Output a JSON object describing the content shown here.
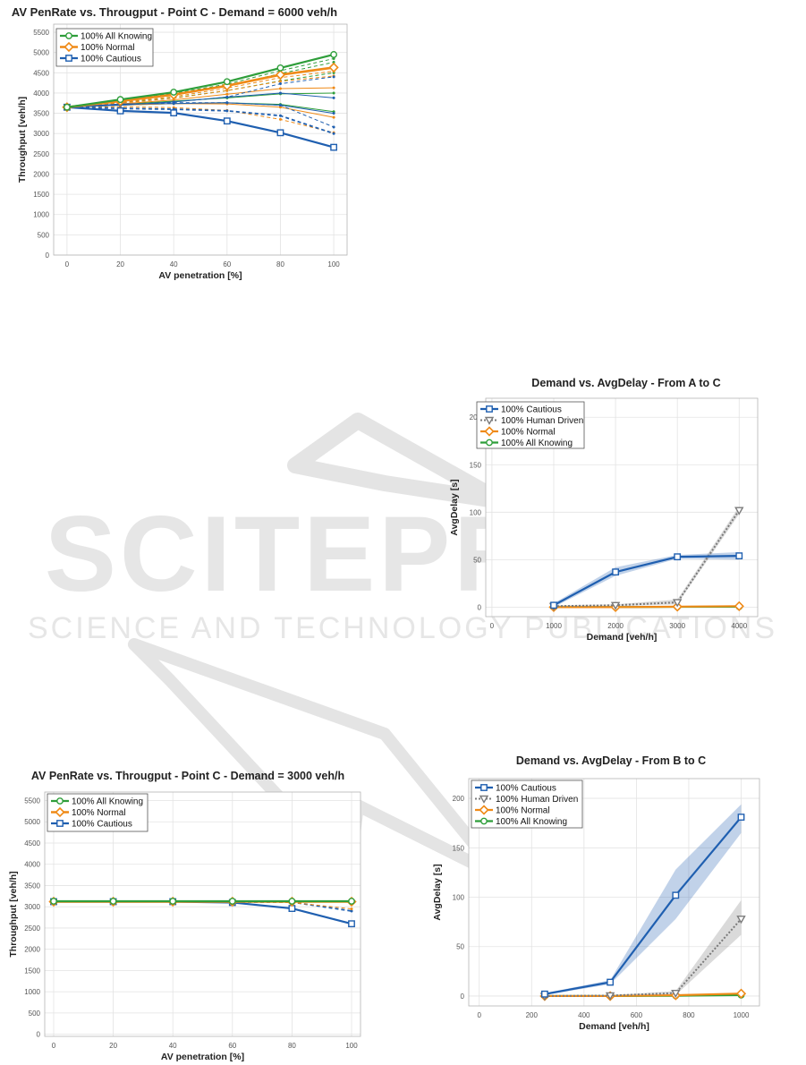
{
  "colors": {
    "green": "#2e9e3a",
    "orange": "#ef8a17",
    "blue": "#1f5fb0",
    "gray": "#7a7a7a",
    "grid": "#e3e3e3",
    "axis": "#555555",
    "watermark": "#dcdcdc"
  },
  "watermark": {
    "title": "SCITEPRESS",
    "subtitle": "SCIENCE AND TECHNOLOGY PUBLICATIONS"
  },
  "chart_data": [
    {
      "id": "c1",
      "type": "line",
      "title": "AV PenRate vs. Througput - Point C - Demand = 6000 veh/h",
      "xlabel": "AV penetration [%]",
      "ylabel": "Throughput [veh/h]",
      "xlim": [
        -5,
        105
      ],
      "ylim": [
        0,
        5700
      ],
      "xticks": [
        0,
        20,
        40,
        60,
        80,
        100
      ],
      "yticks": [
        0,
        500,
        1000,
        1500,
        2000,
        2500,
        3000,
        3500,
        4000,
        4500,
        5000,
        5500
      ],
      "grid": true,
      "legend_position": "top-left",
      "x": [
        0,
        20,
        40,
        60,
        80,
        100
      ],
      "series": [
        {
          "name": "100% All Knowing",
          "color": "green",
          "marker": "circle",
          "width": 2.2,
          "values": [
            3650,
            3840,
            4020,
            4280,
            4620,
            4950
          ]
        },
        {
          "name": "100% Normal",
          "color": "orange",
          "marker": "diamond",
          "width": 2.6,
          "values": [
            3650,
            3800,
            3960,
            4180,
            4450,
            4630
          ]
        },
        {
          "name": "100% Cautious",
          "color": "blue",
          "marker": "square",
          "width": 2.2,
          "values": [
            3650,
            3560,
            3510,
            3310,
            3020,
            2660
          ]
        },
        {
          "color": "green",
          "dash": "4,3",
          "width": 1,
          "values": [
            3650,
            3810,
            3990,
            4220,
            4550,
            4850
          ]
        },
        {
          "color": "green",
          "dash": "4,3",
          "width": 1,
          "values": [
            3650,
            3790,
            3950,
            4170,
            4480,
            4760
          ]
        },
        {
          "color": "green",
          "dash": "4,3",
          "width": 1,
          "values": [
            3650,
            3760,
            3880,
            4060,
            4300,
            4500
          ]
        },
        {
          "color": "green",
          "dash": "",
          "width": 1,
          "values": [
            3650,
            3720,
            3800,
            3880,
            3980,
            4000
          ]
        },
        {
          "color": "green",
          "dash": "",
          "width": 1,
          "values": [
            3650,
            3700,
            3740,
            3760,
            3720,
            3540
          ]
        },
        {
          "color": "orange",
          "dash": "4,3",
          "width": 1,
          "values": [
            3650,
            3770,
            3910,
            4120,
            4380,
            4540
          ]
        },
        {
          "color": "orange",
          "dash": "4,3",
          "width": 1,
          "values": [
            3650,
            3750,
            3870,
            4060,
            4290,
            4420
          ]
        },
        {
          "color": "orange",
          "dash": "",
          "width": 1,
          "values": [
            3650,
            3730,
            3830,
            3970,
            4110,
            4130
          ]
        },
        {
          "color": "orange",
          "dash": "",
          "width": 1,
          "values": [
            3650,
            3700,
            3740,
            3730,
            3650,
            3400
          ]
        },
        {
          "color": "orange",
          "dash": "4,3",
          "width": 1,
          "values": [
            3650,
            3660,
            3640,
            3570,
            3350,
            3020
          ]
        },
        {
          "color": "blue",
          "dash": "4,3",
          "width": 1.8,
          "values": [
            3650,
            3620,
            3600,
            3560,
            3440,
            3000
          ]
        },
        {
          "color": "blue",
          "dash": "4,3",
          "width": 1,
          "values": [
            3650,
            3700,
            3780,
            3900,
            4230,
            4400
          ]
        },
        {
          "color": "blue",
          "dash": "",
          "width": 1,
          "values": [
            3650,
            3700,
            3780,
            3900,
            4000,
            3880
          ]
        },
        {
          "color": "blue",
          "dash": "4,3",
          "width": 1,
          "values": [
            3650,
            3710,
            3760,
            3760,
            3700,
            3160
          ]
        },
        {
          "color": "blue",
          "dash": "",
          "width": 1,
          "values": [
            3650,
            3730,
            3740,
            3760,
            3700,
            3500
          ]
        }
      ]
    },
    {
      "id": "c2",
      "type": "line",
      "title": "Demand vs. AvgDelay - From A to C",
      "xlabel": "Demand [veh/h]",
      "ylabel": "AvgDelay [s]",
      "xlim": [
        -100,
        4300
      ],
      "ylim": [
        -10,
        220
      ],
      "xticks": [
        0,
        1000,
        2000,
        3000,
        4000
      ],
      "yticks": [
        0,
        50,
        100,
        150,
        200
      ],
      "grid": true,
      "legend_position": "top-left",
      "x": [
        1000,
        2000,
        3000,
        4000
      ],
      "bands": [
        {
          "color": "blue",
          "low": [
            0,
            33,
            51,
            50
          ],
          "high": [
            4,
            42,
            55,
            58
          ]
        },
        {
          "color": "gray",
          "low": [
            0,
            1,
            3,
            98
          ],
          "high": [
            2,
            3,
            8,
            106
          ]
        }
      ],
      "series": [
        {
          "name": "100% Cautious",
          "color": "blue",
          "marker": "square",
          "width": 2.2,
          "values": [
            2,
            37,
            53,
            54
          ]
        },
        {
          "name": "100% Human Driven",
          "color": "gray",
          "marker": "triangle-down",
          "dash": "2,2",
          "width": 2,
          "values": [
            1,
            2,
            5,
            102
          ]
        },
        {
          "name": "100% Normal",
          "color": "orange",
          "marker": "diamond",
          "width": 2.2,
          "values": [
            0,
            0,
            0.5,
            1
          ]
        },
        {
          "name": "100% All Knowing",
          "color": "green",
          "marker": "circle",
          "width": 2.2,
          "values": [
            0,
            0,
            0.3,
            0.5
          ]
        }
      ]
    },
    {
      "id": "c3",
      "type": "line",
      "title": "AV PenRate vs. Througput - Point C - Demand = 3000 veh/h",
      "xlabel": "AV penetration [%]",
      "ylabel": "Throughput [veh/h]",
      "xlim": [
        -3,
        103
      ],
      "ylim": [
        -50,
        5700
      ],
      "xticks": [
        0,
        20,
        40,
        60,
        80,
        100
      ],
      "yticks": [
        0,
        500,
        1000,
        1500,
        2000,
        2500,
        3000,
        3500,
        4000,
        4500,
        5000,
        5500
      ],
      "grid": true,
      "legend_position": "top-left",
      "x": [
        0,
        20,
        40,
        60,
        80,
        100
      ],
      "series": [
        {
          "name": "100% All Knowing",
          "color": "green",
          "marker": "circle",
          "width": 2.2,
          "values": [
            3130,
            3130,
            3130,
            3130,
            3130,
            3130
          ]
        },
        {
          "name": "100% Normal",
          "color": "orange",
          "marker": "diamond",
          "width": 2.6,
          "values": [
            3120,
            3120,
            3120,
            3120,
            3120,
            3120
          ]
        },
        {
          "name": "100% Cautious",
          "color": "blue",
          "marker": "square",
          "width": 2.2,
          "values": [
            3120,
            3120,
            3120,
            3100,
            2960,
            2600
          ]
        },
        {
          "color": "blue",
          "dash": "4,3",
          "width": 1.8,
          "values": [
            3120,
            3120,
            3120,
            3110,
            3110,
            2900
          ]
        },
        {
          "color": "orange",
          "dash": "4,3",
          "width": 1,
          "values": [
            3120,
            3120,
            3120,
            3120,
            3100,
            2950
          ]
        }
      ]
    },
    {
      "id": "c4",
      "type": "line",
      "title": "Demand vs. AvgDelay - From B to C",
      "xlabel": "Demand [veh/h]",
      "ylabel": "AvgDelay [s]",
      "xlim": [
        -40,
        1070
      ],
      "ylim": [
        -10,
        220
      ],
      "xticks": [
        0,
        200,
        400,
        600,
        800,
        1000
      ],
      "yticks": [
        0,
        50,
        100,
        150,
        200
      ],
      "grid": true,
      "legend_position": "top-left",
      "x": [
        250,
        500,
        750,
        1000
      ],
      "bands": [
        {
          "color": "blue",
          "low": [
            1,
            12,
            78,
            165
          ],
          "high": [
            3,
            16,
            128,
            194
          ]
        },
        {
          "color": "gray",
          "low": [
            0,
            0,
            1,
            62
          ],
          "high": [
            1,
            1,
            5,
            97
          ]
        }
      ],
      "series": [
        {
          "name": "100% Cautious",
          "color": "blue",
          "marker": "square",
          "width": 2.2,
          "values": [
            2,
            14,
            102,
            181
          ]
        },
        {
          "name": "100% Human Driven",
          "color": "gray",
          "marker": "triangle-down",
          "dash": "2,2",
          "width": 2,
          "values": [
            0,
            0.5,
            3,
            78
          ]
        },
        {
          "name": "100% Normal",
          "color": "orange",
          "marker": "diamond",
          "width": 2.2,
          "values": [
            0,
            0,
            0.8,
            2.5
          ]
        },
        {
          "name": "100% All Knowing",
          "color": "green",
          "marker": "circle",
          "width": 2.2,
          "values": [
            0,
            0,
            0.3,
            1
          ]
        }
      ]
    }
  ]
}
